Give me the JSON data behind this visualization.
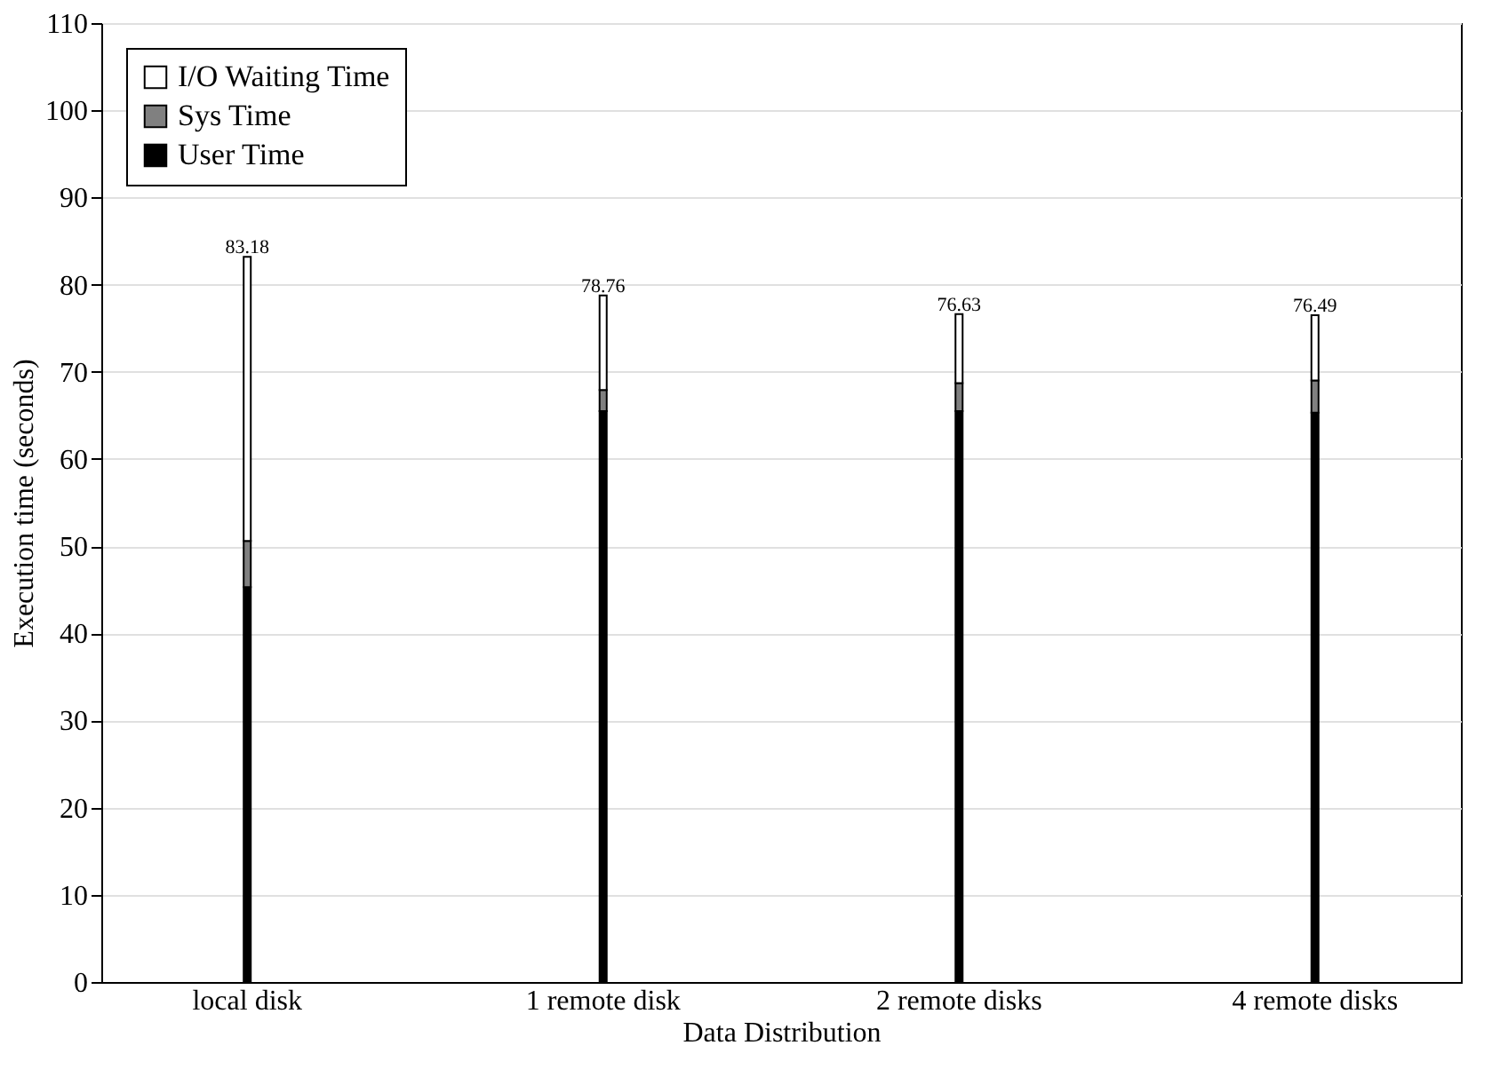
{
  "chart_data": {
    "type": "bar",
    "stacked": true,
    "xlabel": "Data Distribution",
    "ylabel": "Execution time (seconds)",
    "categories": [
      "local disk",
      "1 remote disk",
      "2 remote disks",
      "4 remote disks"
    ],
    "series": [
      {
        "name": "User Time",
        "color": "#000000",
        "values": [
          45.3,
          65.5,
          65.5,
          65.3
        ]
      },
      {
        "name": "Sys Time",
        "color": "#808080",
        "values": [
          5.3,
          2.4,
          3.2,
          3.7
        ]
      },
      {
        "name": "I/O Waiting Time",
        "color": "#ffffff",
        "values": [
          32.58,
          10.86,
          7.93,
          7.49
        ]
      }
    ],
    "totals": [
      "83.18",
      "78.76",
      "76.63",
      "76.49"
    ],
    "ylim": [
      0,
      110
    ],
    "yticks": [
      0,
      10,
      20,
      30,
      40,
      50,
      60,
      70,
      80,
      90,
      100,
      110
    ],
    "grid": "y",
    "legend": "top left"
  }
}
